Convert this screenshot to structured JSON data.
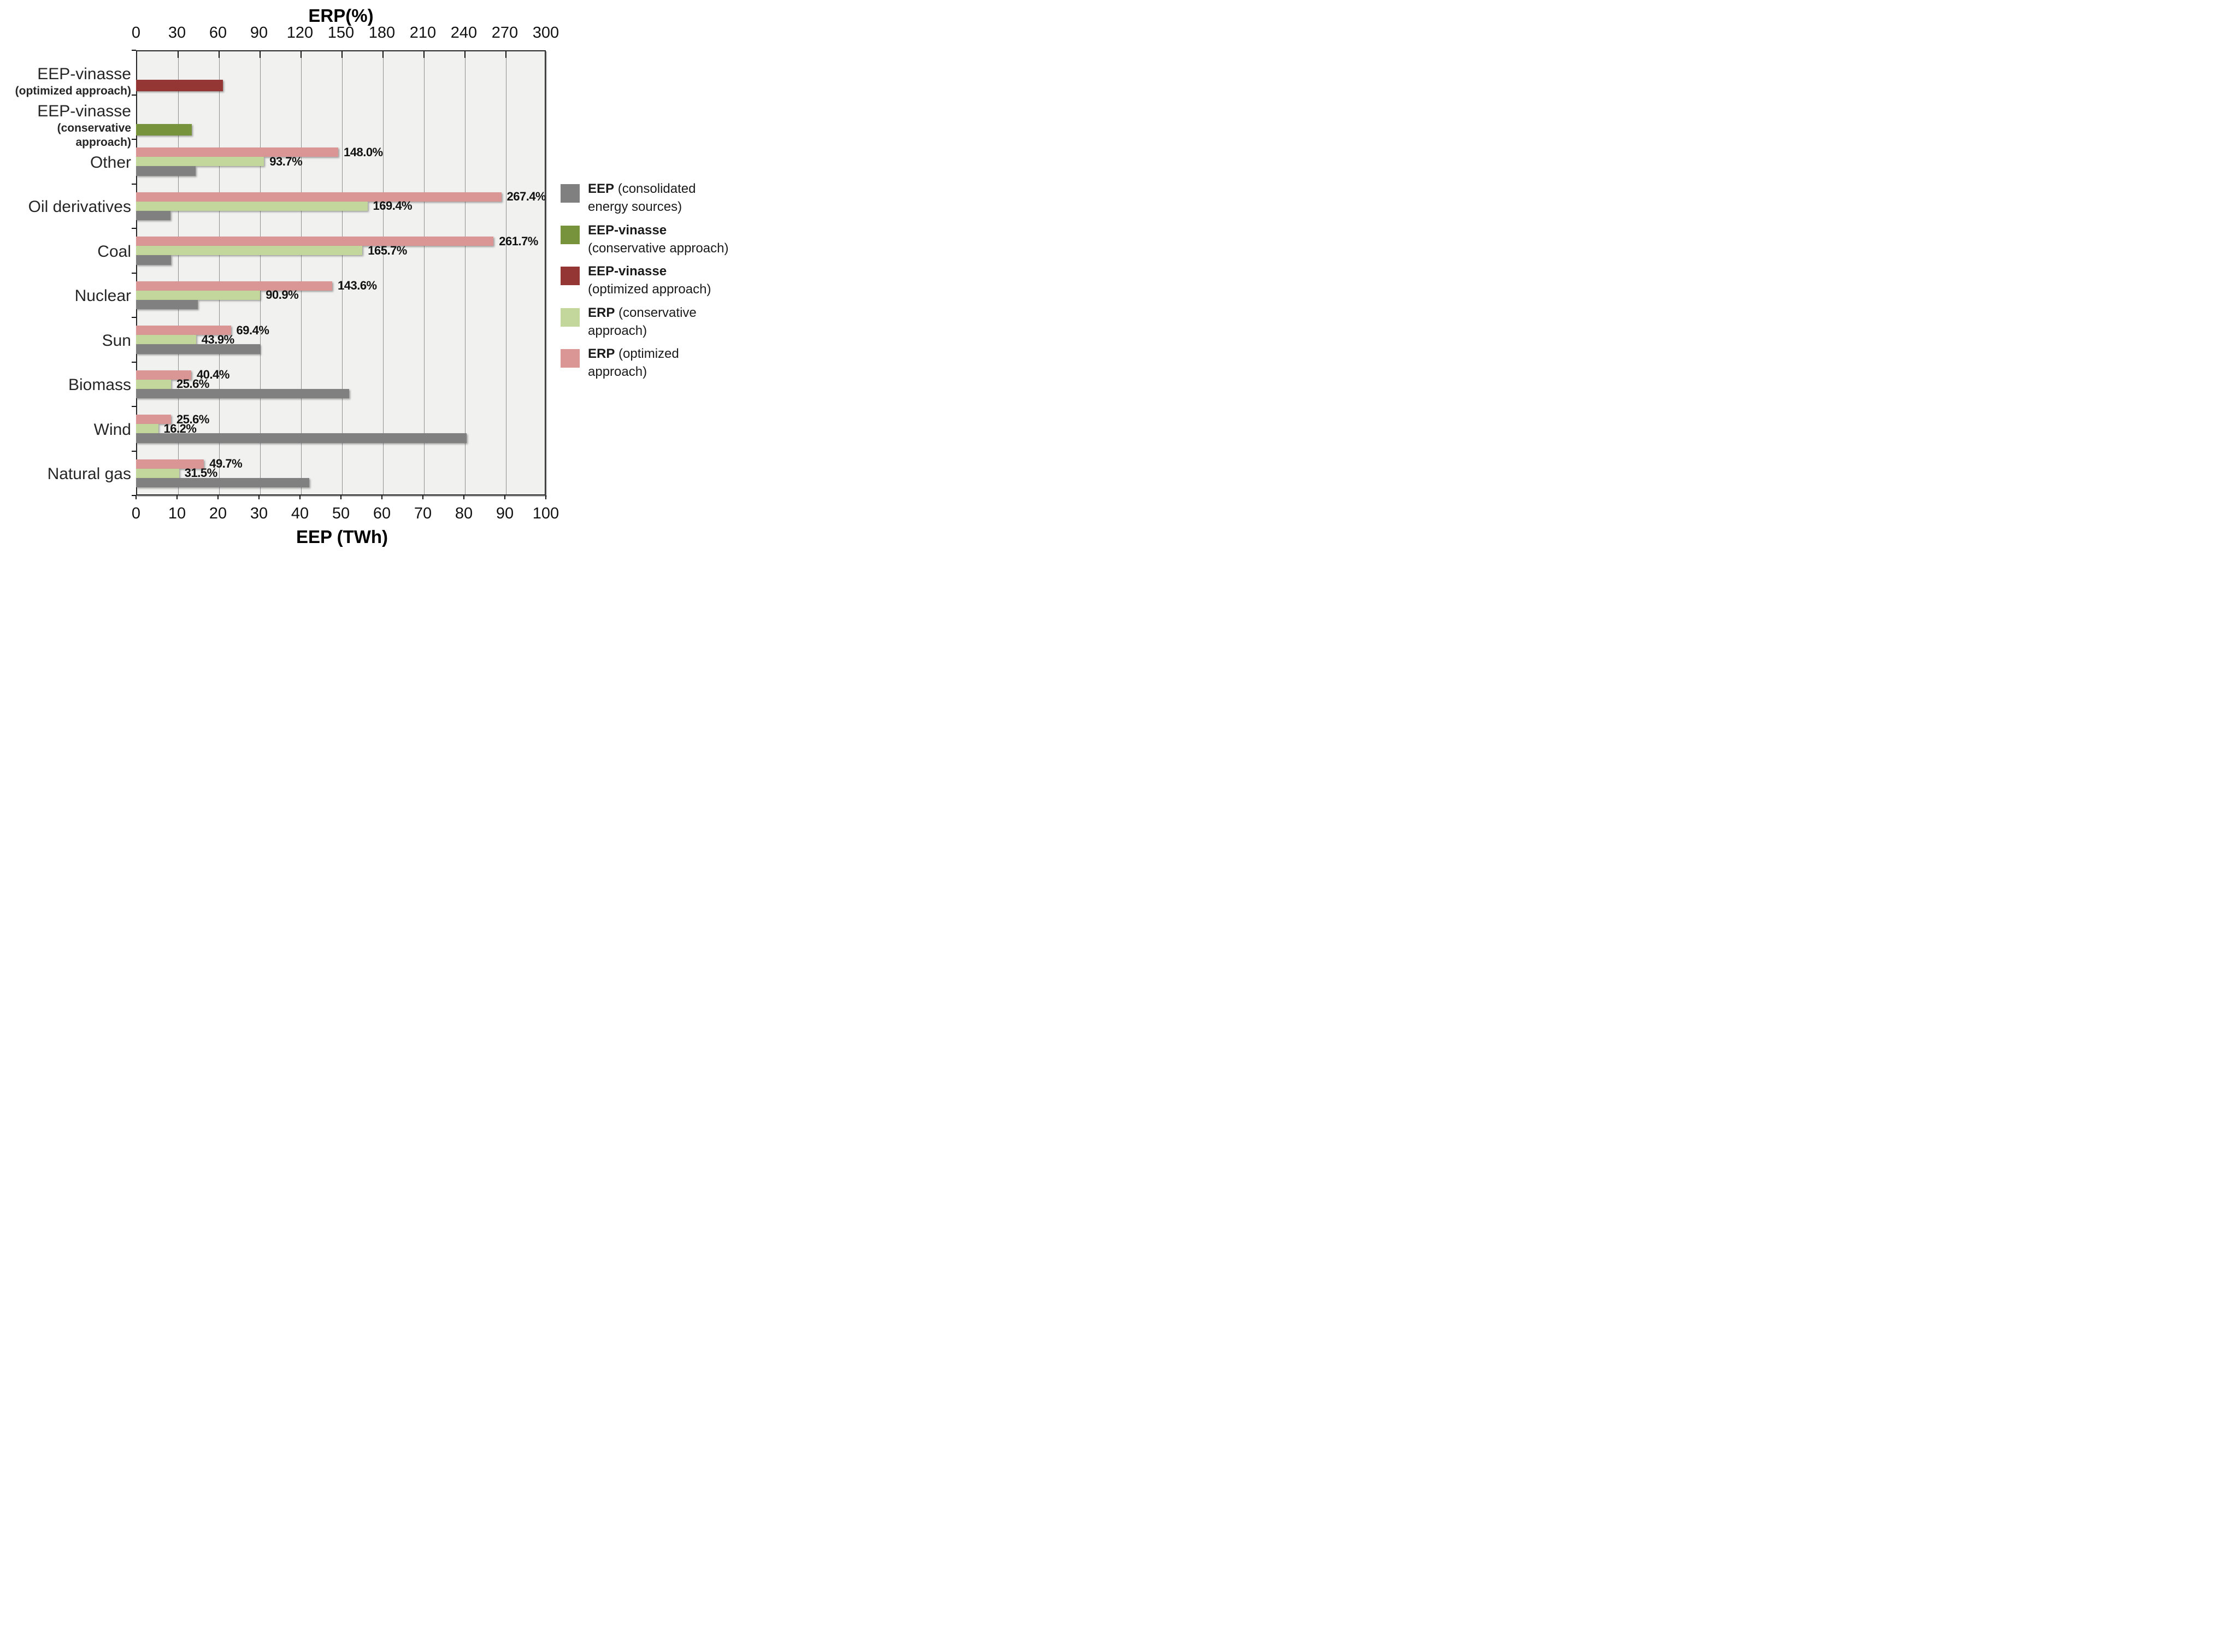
{
  "figure": {
    "background": "#ffffff",
    "plot_background": "#f1f1f0",
    "border_color": "#262626",
    "gridline_color": "#8f8f8f",
    "text_color": "#1a1a1a"
  },
  "top_axis": {
    "title": "ERP(%)",
    "unit": "%",
    "min": 0,
    "max": 300,
    "ticks": [
      0,
      30,
      60,
      90,
      120,
      150,
      180,
      210,
      240,
      270,
      300
    ]
  },
  "bottom_axis": {
    "title": "EEP (TWh)",
    "unit": "TWh",
    "min": 0,
    "max": 100,
    "ticks": [
      0,
      10,
      20,
      30,
      40,
      50,
      60,
      70,
      80,
      90,
      100
    ]
  },
  "chart_data": {
    "type": "bar",
    "orientation": "horizontal",
    "grid": true,
    "categories": [
      {
        "label": "EEP-vinasse",
        "sublabel": "(optimized approach)"
      },
      {
        "label": "EEP-vinasse",
        "sublabel": "(conservative approach)"
      },
      {
        "label": "Other"
      },
      {
        "label": "Oil derivatives"
      },
      {
        "label": "Coal"
      },
      {
        "label": "Nuclear"
      },
      {
        "label": "Sun"
      },
      {
        "label": "Biomass"
      },
      {
        "label": "Wind"
      },
      {
        "label": "Natural gas"
      }
    ],
    "series": [
      {
        "id": "erp_optimized",
        "name": "ERP (optimized approach)",
        "axis": "top",
        "unit": "%",
        "color": "#d99694",
        "data_labels": true,
        "values": [
          null,
          null,
          148.0,
          267.4,
          261.7,
          143.6,
          69.4,
          40.4,
          25.6,
          49.7
        ]
      },
      {
        "id": "erp_conservative",
        "name": "ERP (conservative approach)",
        "axis": "top",
        "unit": "%",
        "color": "#c3d69b",
        "data_labels": true,
        "values": [
          null,
          null,
          93.7,
          169.4,
          165.7,
          90.9,
          43.9,
          25.6,
          16.2,
          31.5
        ]
      },
      {
        "id": "eep",
        "name": "EEP (consolidated energy sources)",
        "axis": "bottom",
        "unit": "TWh",
        "color": "#808080",
        "data_labels": false,
        "values": [
          null,
          null,
          14.5,
          8.4,
          8.5,
          15.0,
          30.2,
          52.0,
          80.7,
          42.3
        ]
      },
      {
        "id": "eep_vinasse_optimized",
        "name": "EEP-vinasse (optimized approach)",
        "axis": "bottom",
        "unit": "TWh",
        "color": "#943634",
        "data_labels": false,
        "values": [
          21.2,
          null,
          null,
          null,
          null,
          null,
          null,
          null,
          null,
          null
        ]
      },
      {
        "id": "eep_vinasse_conservative",
        "name": "EEP-vinasse (conservative approach)",
        "axis": "bottom",
        "unit": "TWh",
        "color": "#77933c",
        "data_labels": false,
        "values": [
          null,
          13.6,
          null,
          null,
          null,
          null,
          null,
          null,
          null,
          null
        ]
      }
    ]
  },
  "legend": {
    "position": "right",
    "items": [
      {
        "series_id": "eep",
        "color": "#808080",
        "bold": "EEP",
        "line1_rest": " (consolidated",
        "line2": "energy sources)"
      },
      {
        "series_id": "eep_vinasse_conservative",
        "color": "#77933c",
        "bold": "EEP-vinasse",
        "line1_rest": "",
        "line2": "(conservative approach)"
      },
      {
        "series_id": "eep_vinasse_optimized",
        "color": "#943634",
        "bold": "EEP-vinasse",
        "line1_rest": "",
        "line2": "(optimized approach)"
      },
      {
        "series_id": "erp_conservative",
        "color": "#c3d69b",
        "bold": "ERP",
        "line1_rest": " (conservative",
        "line2": "approach)"
      },
      {
        "series_id": "erp_optimized",
        "color": "#d99694",
        "bold": "ERP",
        "line1_rest": " (optimized",
        "line2": "approach)"
      }
    ]
  }
}
